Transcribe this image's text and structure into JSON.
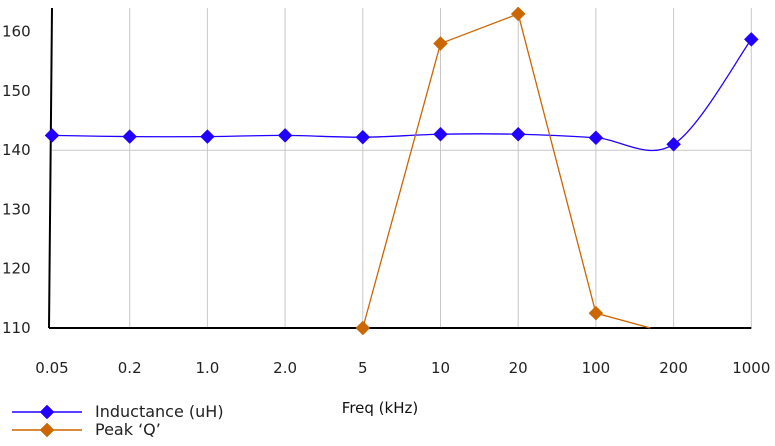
{
  "chart_data": {
    "type": "line",
    "title": "",
    "xlabel": "Freq (kHz)",
    "ylabel": "",
    "categories": [
      "0.05",
      "0.2",
      "1.0",
      "2.0",
      "5",
      "10",
      "20",
      "100",
      "200",
      "1000"
    ],
    "ylim": [
      110,
      164
    ],
    "yticks": [
      110,
      120,
      130,
      140,
      150,
      160
    ],
    "grid": true,
    "legend_position": "bottom-left",
    "series": [
      {
        "name": "Inductance (uH)",
        "color": "#2200ff",
        "marker": "diamond",
        "smooth": true,
        "values": [
          142.5,
          142.3,
          142.3,
          142.5,
          142.2,
          142.7,
          142.7,
          142.1,
          141.0,
          158.7
        ]
      },
      {
        "name": "Peak ‘Q’",
        "color": "#cc6600",
        "marker": "diamond",
        "smooth": false,
        "values": [
          null,
          null,
          null,
          null,
          110,
          158,
          163,
          112.5,
          null,
          null
        ],
        "trailing_segment_end": [
          7.7,
          110
        ]
      }
    ]
  }
}
